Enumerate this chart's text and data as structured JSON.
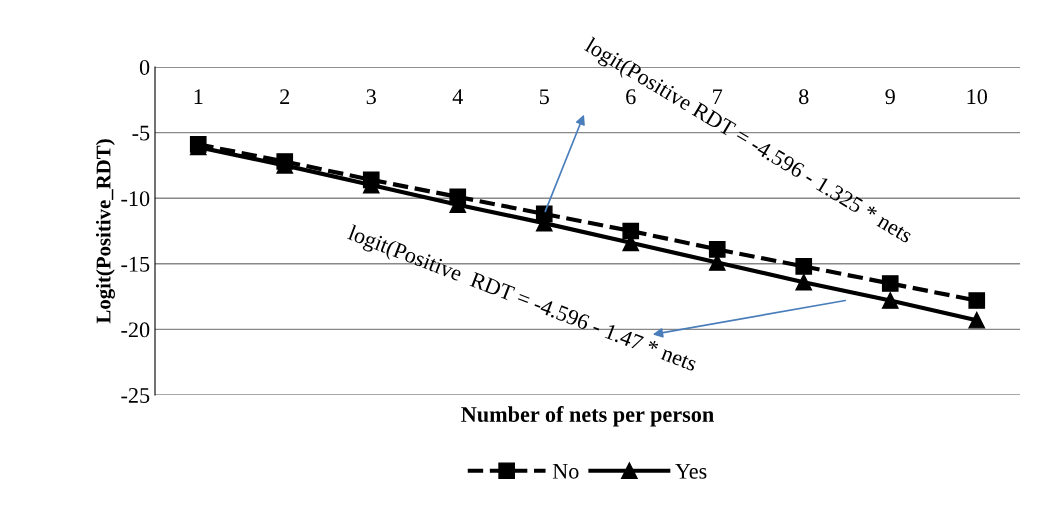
{
  "chart_data": {
    "type": "line",
    "xlabel": "Number of nets per person",
    "ylabel": "Logit(Positive_RDT)",
    "categories": [
      "1",
      "2",
      "3",
      "4",
      "5",
      "6",
      "7",
      "8",
      "9",
      "10"
    ],
    "series": [
      {
        "name": "No",
        "color": "#000000",
        "marker": "square",
        "line_style": "dashed",
        "values": [
          -5.9,
          -7.2,
          -8.6,
          -9.9,
          -11.2,
          -12.5,
          -13.9,
          -15.2,
          -16.5,
          -17.8
        ]
      },
      {
        "name": "Yes",
        "color": "#000000",
        "marker": "triangle",
        "line_style": "solid",
        "values": [
          -6.1,
          -7.5,
          -9.0,
          -10.5,
          -11.9,
          -13.4,
          -14.9,
          -16.4,
          -17.8,
          -19.3
        ]
      }
    ],
    "ylim": [
      -25,
      0
    ],
    "yticks": [
      0,
      -5,
      -10,
      -15,
      -20,
      -25
    ],
    "grid": "y",
    "legend": "bottom",
    "annotations": [
      {
        "text": "logit(Positive RDT = -4.596 - 1.325 * nets",
        "x": "5",
        "y": -11.2
      },
      "logit(Positive  RDT = -4.596 - 1.47 * nets"
    ]
  }
}
